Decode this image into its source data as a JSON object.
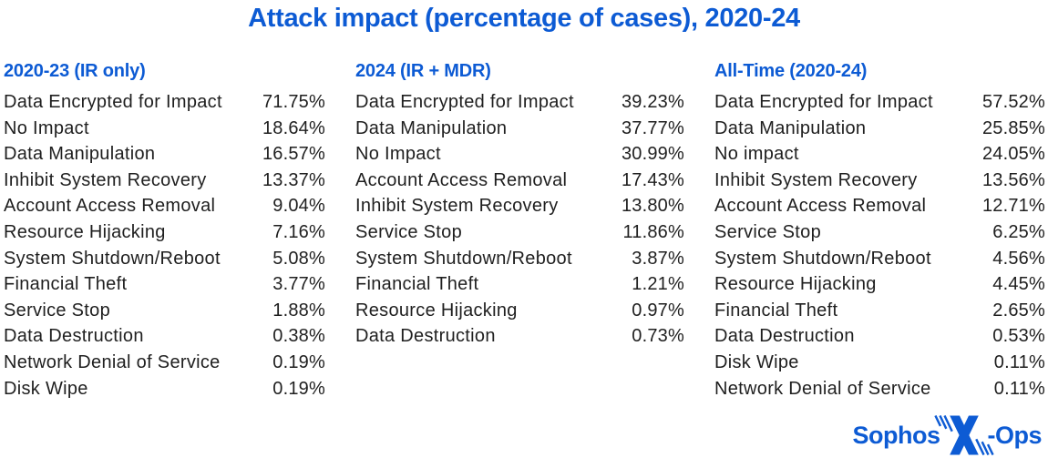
{
  "title": "Attack impact (percentage of cases), 2020-24",
  "colors": {
    "accent": "#0d5bd4",
    "text": "#1f1f1f",
    "background": "#ffffff"
  },
  "columns": [
    {
      "header": "2020-23 (IR only)",
      "rows": [
        [
          "Data Encrypted for Impact",
          "71.75%"
        ],
        [
          "No Impact",
          "18.64%"
        ],
        [
          "Data Manipulation",
          "16.57%"
        ],
        [
          "Inhibit System Recovery",
          "13.37%"
        ],
        [
          "Account Access Removal",
          "9.04%"
        ],
        [
          "Resource Hijacking",
          "7.16%"
        ],
        [
          "System Shutdown/Reboot",
          "5.08%"
        ],
        [
          "Financial Theft",
          "3.77%"
        ],
        [
          "Service Stop",
          "1.88%"
        ],
        [
          "Data Destruction",
          "0.38%"
        ],
        [
          "Network Denial of Service",
          "0.19%"
        ],
        [
          "Disk Wipe",
          "0.19%"
        ]
      ]
    },
    {
      "header": "2024 (IR + MDR)",
      "rows": [
        [
          "Data Encrypted for Impact",
          "39.23%"
        ],
        [
          "Data Manipulation",
          "37.77%"
        ],
        [
          "No Impact",
          "30.99%"
        ],
        [
          "Account Access Removal",
          "17.43%"
        ],
        [
          "Inhibit System Recovery",
          "13.80%"
        ],
        [
          "Service Stop",
          "11.86%"
        ],
        [
          "System Shutdown/Reboot",
          "3.87%"
        ],
        [
          "Financial Theft",
          "1.21%"
        ],
        [
          "Resource Hijacking",
          "0.97%"
        ],
        [
          "Data Destruction",
          "0.73%"
        ]
      ]
    },
    {
      "header": "All-Time (2020-24)",
      "rows": [
        [
          "Data Encrypted for Impact",
          "57.52%"
        ],
        [
          "Data Manipulation",
          "25.85%"
        ],
        [
          "No impact",
          "24.05%"
        ],
        [
          "Inhibit System Recovery",
          "13.56%"
        ],
        [
          "Account Access Removal",
          "12.71%"
        ],
        [
          "Service Stop",
          "6.25%"
        ],
        [
          "System Shutdown/Reboot",
          "4.56%"
        ],
        [
          "Resource Hijacking",
          "4.45%"
        ],
        [
          "Financial Theft",
          "2.65%"
        ],
        [
          "Data Destruction",
          "0.53%"
        ],
        [
          "Disk Wipe",
          "0.11%"
        ],
        [
          "Network Denial of Service",
          "0.11%"
        ]
      ]
    }
  ],
  "logo": {
    "brand": "Sophos",
    "suffix": "-Ops",
    "icon": "x-ops-x-icon"
  },
  "chart_data": {
    "type": "table",
    "title": "Attack impact (percentage of cases), 2020-24",
    "unit": "%",
    "tables": [
      {
        "name": "2020-23 (IR only)",
        "categories": [
          "Data Encrypted for Impact",
          "No Impact",
          "Data Manipulation",
          "Inhibit System Recovery",
          "Account Access Removal",
          "Resource Hijacking",
          "System Shutdown/Reboot",
          "Financial Theft",
          "Service Stop",
          "Data Destruction",
          "Network Denial of Service",
          "Disk Wipe"
        ],
        "values": [
          71.75,
          18.64,
          16.57,
          13.37,
          9.04,
          7.16,
          5.08,
          3.77,
          1.88,
          0.38,
          0.19,
          0.19
        ]
      },
      {
        "name": "2024 (IR + MDR)",
        "categories": [
          "Data Encrypted for Impact",
          "Data Manipulation",
          "No Impact",
          "Account Access Removal",
          "Inhibit System Recovery",
          "Service Stop",
          "System Shutdown/Reboot",
          "Financial Theft",
          "Resource Hijacking",
          "Data Destruction"
        ],
        "values": [
          39.23,
          37.77,
          30.99,
          17.43,
          13.8,
          11.86,
          3.87,
          1.21,
          0.97,
          0.73
        ]
      },
      {
        "name": "All-Time (2020-24)",
        "categories": [
          "Data Encrypted for Impact",
          "Data Manipulation",
          "No impact",
          "Inhibit System Recovery",
          "Account Access Removal",
          "Service Stop",
          "System Shutdown/Reboot",
          "Resource Hijacking",
          "Financial Theft",
          "Data Destruction",
          "Disk Wipe",
          "Network Denial of Service"
        ],
        "values": [
          57.52,
          25.85,
          24.05,
          13.56,
          12.71,
          6.25,
          4.56,
          4.45,
          2.65,
          0.53,
          0.11,
          0.11
        ]
      }
    ]
  }
}
